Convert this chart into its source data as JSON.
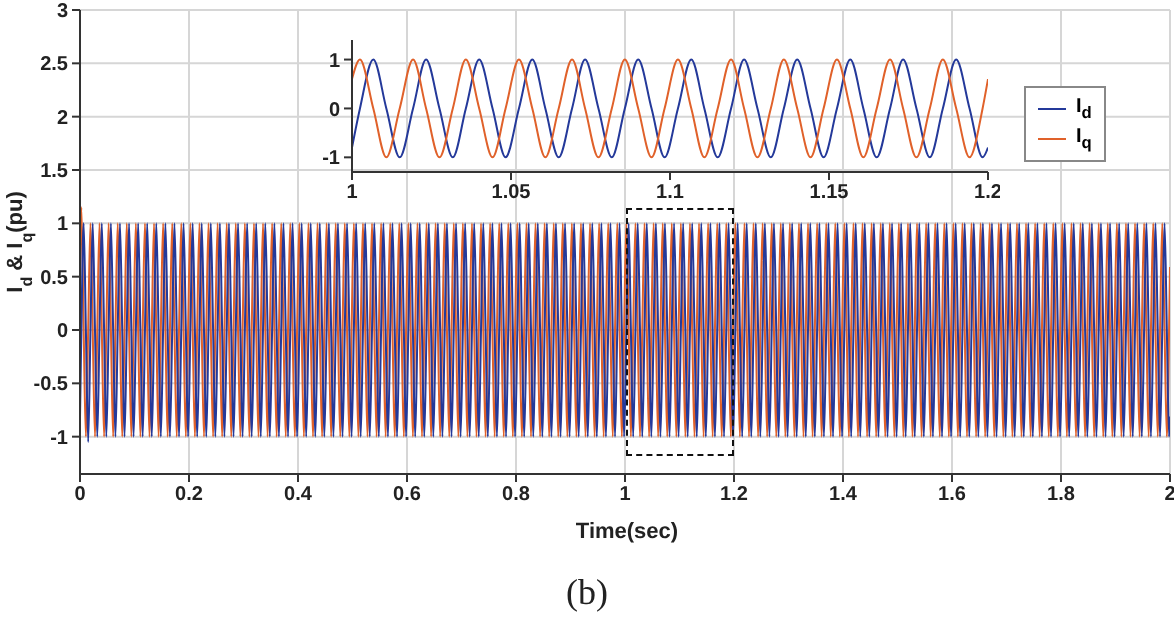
{
  "chart_data": [
    {
      "type": "line",
      "xlabel": "Time(sec)",
      "ylabel": "I$_{d}$ & I$_{q}$(pu)",
      "xlim": [
        0,
        2
      ],
      "ylim": [
        -1.35,
        3
      ],
      "xticks": [
        0,
        0.2,
        0.4,
        0.6,
        0.8,
        1,
        1.2,
        1.4,
        1.6,
        1.8,
        2
      ],
      "yticks": [
        -1,
        -0.5,
        0,
        0.5,
        1,
        1.5,
        2,
        2.5,
        3
      ],
      "grid": true,
      "annotations": [
        "(b)"
      ],
      "x": [
        0,
        0.0025,
        0.0067,
        0.0108,
        0.015,
        0.0192,
        0.0233,
        0.0275,
        0.0317,
        0.0358,
        0.04,
        0.0442,
        0.0483,
        0.0525,
        0.0567,
        0.0608,
        0.065,
        0.0692,
        0.0733,
        0.0775,
        0.0817,
        0.0858,
        0.09,
        0.0942,
        0.0983,
        0.1025,
        0.1067,
        0.1108,
        0.115,
        0.1192,
        0.1233,
        0.1275,
        0.1317,
        0.1358,
        0.14,
        0.1442,
        0.1483,
        0.1525,
        0.1567,
        0.1608,
        0.165,
        0.1692,
        0.1733,
        0.1775,
        0.1817,
        0.1858,
        0.19,
        0.1942,
        0.1983,
        0.2025,
        0.2067,
        0.2108,
        0.215,
        0.2192,
        0.2233,
        0.2275,
        0.2317,
        0.2358,
        0.24,
        0.2442,
        0.2483,
        0.2525,
        0.2567,
        0.2608,
        0.265,
        0.2692,
        0.2733,
        0.2775,
        0.2817,
        0.2858,
        0.29,
        0.2942,
        0.2983,
        0.3025,
        0.3067,
        0.3108,
        0.315,
        0.3192,
        0.3233,
        0.3275,
        0.3317,
        0.3358,
        0.34,
        0.3442,
        0.3483,
        0.3525,
        0.3567,
        0.3608,
        0.365,
        0.3692,
        0.3733,
        0.3775,
        0.3817,
        0.3858,
        0.39,
        0.3942,
        0.3983,
        0.4025,
        0.4067,
        0.4108,
        0.415,
        0.4192,
        0.4233,
        0.4275,
        0.4317,
        0.4358,
        0.44,
        0.4442,
        0.4483,
        0.4525,
        0.4567,
        0.4608,
        0.465,
        0.4692,
        0.4733,
        0.4775,
        0.4817,
        0.4858,
        0.49,
        0.4942,
        0.4983,
        0.5025,
        0.5067,
        0.5108,
        0.515,
        0.5192,
        0.5233,
        0.5275,
        0.5317,
        0.5358,
        0.54,
        0.5442,
        0.5483,
        0.5525,
        0.5567,
        0.5608,
        0.565,
        0.5692,
        0.5733,
        0.5775,
        0.5817,
        0.5858,
        0.59,
        0.5942,
        0.5983,
        0.6025,
        0.6067,
        0.6108,
        0.615,
        0.6192,
        0.6233,
        0.6275,
        0.6317,
        0.6358,
        0.64,
        0.6442,
        0.6483,
        0.6525,
        0.6567,
        0.6608,
        0.665,
        0.6692,
        0.6733,
        0.6775,
        0.6817,
        0.6858,
        0.69,
        0.6942,
        0.6983,
        0.7025,
        0.7067,
        0.7108,
        0.715,
        0.7192,
        0.7233,
        0.7275,
        0.7317,
        0.7358,
        0.74,
        0.7442,
        0.7483,
        0.7525,
        0.7567,
        0.7608,
        0.765,
        0.7692,
        0.7733,
        0.7775,
        0.7817,
        0.7858,
        0.79,
        0.7942,
        0.7983,
        0.8025,
        0.8067,
        0.8108,
        0.815,
        0.8192,
        0.8233,
        0.8275,
        0.8317,
        0.8358,
        0.84,
        0.8442,
        0.8483,
        0.8525,
        0.8567,
        0.8608,
        0.865,
        0.8692,
        0.8733,
        0.8775,
        0.8817,
        0.8858,
        0.89,
        0.8942,
        0.8983,
        0.9025,
        0.9067,
        0.9108,
        0.915,
        0.9192,
        0.9233,
        0.9275,
        0.9317,
        0.9358,
        0.94,
        0.9442,
        0.9483,
        0.9525,
        0.9567,
        0.9608,
        0.965,
        0.9692,
        0.9733,
        0.9775,
        0.9817,
        0.9858,
        0.99,
        0.9942,
        0.9983,
        1.0025,
        1.0067,
        1.0108,
        1.015,
        1.0192,
        1.0233,
        1.0275,
        1.0317,
        1.0358,
        1.04,
        1.0442,
        1.0483,
        1.0525,
        1.0567,
        1.0608,
        1.065,
        1.0692,
        1.0733,
        1.0775,
        1.0817,
        1.0858,
        1.09,
        1.0942,
        1.0983,
        1.1025,
        1.1067,
        1.1108,
        1.115,
        1.1192,
        1.1233,
        1.1275,
        1.1317,
        1.1358,
        1.14,
        1.1442,
        1.1483,
        1.1525,
        1.1567,
        1.1608,
        1.165,
        1.1692,
        1.1733,
        1.1775,
        1.1817,
        1.1858,
        1.19,
        1.1942,
        1.1983,
        1.2025,
        1.2067,
        1.2108,
        1.215,
        1.2192,
        1.2233,
        1.2275,
        1.2317,
        1.2358,
        1.24,
        1.2442,
        1.2483,
        1.2525,
        1.2567,
        1.2608,
        1.265,
        1.2692,
        1.2733,
        1.2775,
        1.2817,
        1.2858,
        1.29,
        1.2942,
        1.2983,
        1.3025,
        1.3067,
        1.3108,
        1.315,
        1.3192,
        1.3233,
        1.3275,
        1.3317,
        1.3358,
        1.34,
        1.3442,
        1.3483,
        1.3525,
        1.3567,
        1.3608,
        1.365,
        1.3692,
        1.3733,
        1.3775,
        1.3817,
        1.3858,
        1.39,
        1.3942,
        1.3983,
        1.4025,
        1.4067,
        1.4108,
        1.415,
        1.4192,
        1.4233,
        1.4275,
        1.4317,
        1.4358,
        1.44,
        1.4442,
        1.4483,
        1.4525,
        1.4567,
        1.4608,
        1.465,
        1.4692,
        1.4733,
        1.4775,
        1.4817,
        1.4858,
        1.49,
        1.4942,
        1.4983,
        1.5025,
        1.5067,
        1.5108,
        1.515,
        1.5192,
        1.5233,
        1.5275,
        1.5317,
        1.5358,
        1.54,
        1.5442,
        1.5483,
        1.5525,
        1.5567,
        1.5608,
        1.565,
        1.5692,
        1.5733,
        1.5775,
        1.5817,
        1.5858,
        1.59,
        1.5942,
        1.5983,
        1.6025,
        1.6067,
        1.6108,
        1.615,
        1.6192,
        1.6233,
        1.6275,
        1.6317,
        1.6358,
        1.64,
        1.6442,
        1.6483,
        1.6525,
        1.6567,
        1.6608,
        1.665,
        1.6692,
        1.6733,
        1.6775,
        1.6817,
        1.6858,
        1.69,
        1.6942,
        1.6983,
        1.7025,
        1.7067,
        1.7108,
        1.715,
        1.7192,
        1.7233,
        1.7275,
        1.7317,
        1.7358,
        1.74,
        1.7442,
        1.7483,
        1.7525,
        1.7567,
        1.7608,
        1.765,
        1.7692,
        1.7733,
        1.7775,
        1.7817,
        1.7858,
        1.79,
        1.7942,
        1.7983,
        1.8025,
        1.8067,
        1.8108,
        1.815,
        1.8192,
        1.8233,
        1.8275,
        1.8317,
        1.8358,
        1.84,
        1.8442,
        1.8483,
        1.8525,
        1.8567,
        1.8608,
        1.865,
        1.8692,
        1.8733,
        1.8775,
        1.8817,
        1.8858,
        1.89,
        1.8942,
        1.8983,
        1.9025,
        1.9067,
        1.9108,
        1.915,
        1.9192,
        1.9233,
        1.9275,
        1.9317,
        1.9358,
        1.94,
        1.9442,
        1.9483,
        1.9525,
        1.9567,
        1.9608,
        1.965,
        1.9692,
        1.9733,
        1.9775,
        1.9817,
        1.9858,
        1.99,
        1.9942,
        1.9983,
        2
      ],
      "series": [
        {
          "color": "#e0612a",
          "values": [
            0.59,
            1.15,
            0,
            -1,
            0,
            1,
            0,
            -1,
            0,
            1,
            0,
            -1,
            0,
            1,
            0,
            -1,
            0,
            1,
            0,
            -1,
            0,
            1,
            0,
            -1,
            0,
            1,
            0,
            -1,
            0,
            1,
            0,
            -1,
            0,
            1,
            0,
            -1,
            0,
            1,
            0,
            -1,
            0,
            1,
            0,
            -1,
            0,
            1,
            0,
            -1,
            0,
            1,
            0,
            -1,
            0,
            1,
            0,
            -1,
            0,
            1,
            0,
            -1,
            0,
            1,
            0,
            -1,
            0,
            1,
            0,
            -1,
            0,
            1,
            0,
            -1,
            0,
            1,
            0,
            -1,
            0,
            1,
            0,
            -1,
            0,
            1,
            0,
            -1,
            0,
            1,
            0,
            -1,
            0,
            1,
            0,
            -1,
            0,
            1,
            0,
            -1,
            0,
            1,
            0,
            -1,
            0,
            1,
            0,
            -1,
            0,
            1,
            0,
            -1,
            0,
            1,
            0,
            -1,
            0,
            1,
            0,
            -1,
            0,
            1,
            0,
            -1,
            0,
            1,
            0,
            -1,
            0,
            1,
            0,
            -1,
            0,
            1,
            0,
            -1,
            0,
            1,
            0,
            -1,
            0,
            1,
            0,
            -1,
            0,
            1,
            0,
            -1,
            0,
            1,
            0,
            -1,
            0,
            1,
            0,
            -1,
            0,
            1,
            0,
            -1,
            0,
            1,
            0,
            -1,
            0,
            1,
            0,
            -1,
            0,
            1,
            0,
            -1,
            0,
            1,
            0,
            -1,
            0,
            1,
            0,
            -1,
            0,
            1,
            0,
            -1,
            0,
            1,
            0,
            -1,
            0,
            1,
            0,
            -1,
            0,
            1,
            0,
            -1,
            0,
            1,
            0,
            -1,
            0,
            1,
            0,
            -1,
            0,
            1,
            0,
            -1,
            0,
            1,
            0,
            -1,
            0,
            1,
            0,
            -1,
            0,
            1,
            0,
            -1,
            0,
            1,
            0,
            -1,
            0,
            1,
            0,
            -1,
            0,
            1,
            0,
            -1,
            0,
            1,
            0,
            -1,
            0,
            1,
            0,
            -1,
            0,
            1,
            0,
            -1,
            0,
            1,
            0,
            -1,
            0,
            1,
            0,
            -1,
            0,
            1,
            0,
            -1,
            0,
            1,
            0,
            -1,
            0,
            1,
            0,
            -1,
            0,
            1,
            0,
            -1,
            0,
            1,
            0,
            -1,
            0,
            1,
            0,
            -1,
            0,
            1,
            0,
            -1,
            0,
            1,
            0,
            -1,
            0,
            1,
            0,
            -1,
            0,
            1,
            0,
            -1,
            0,
            1,
            0,
            -1,
            0,
            1,
            0,
            -1,
            0,
            1,
            0,
            -1,
            0,
            1,
            0,
            -1,
            0,
            1,
            0,
            -1,
            0,
            1,
            0,
            -1,
            0,
            1,
            0,
            -1,
            0,
            1,
            0,
            -1,
            0,
            1,
            0,
            -1,
            0,
            1,
            0,
            -1,
            0,
            1,
            0,
            -1,
            0,
            1,
            0,
            -1,
            0,
            1,
            0,
            -1,
            0,
            1,
            0,
            -1,
            0,
            1,
            0,
            -1,
            0,
            1,
            0,
            -1,
            0,
            1,
            0,
            -1,
            0,
            1,
            0,
            -1,
            0,
            1,
            0,
            -1,
            0,
            1,
            0,
            -1,
            0,
            1,
            0,
            -1,
            0,
            1,
            0,
            -1,
            0,
            1,
            0,
            -1,
            0,
            1,
            0,
            -1,
            0,
            1,
            0,
            -1,
            0,
            1,
            0,
            -1,
            0,
            1,
            0,
            -1,
            0,
            1,
            0,
            -1,
            0,
            1,
            0,
            -1,
            0,
            1,
            0,
            -1,
            0,
            1,
            0,
            -1,
            0,
            1,
            0,
            -1,
            0,
            1,
            0,
            -1,
            0,
            1,
            0,
            -1,
            0,
            1,
            0,
            -1,
            0,
            1,
            0,
            -1,
            0,
            1,
            0,
            -1,
            0,
            1,
            0,
            -1,
            0,
            1,
            0,
            -1,
            0,
            1,
            0,
            -1,
            0,
            1,
            0,
            -1,
            0,
            1,
            0,
            -1,
            0,
            1,
            0,
            -1,
            0,
            1,
            0,
            -1,
            0,
            1,
            0,
            -1,
            0,
            1,
            0,
            -1,
            0,
            1,
            0,
            -1,
            0,
            1,
            0,
            -1,
            0,
            0.59
          ]
        },
        {
          "color": "#24399a",
          "values": [
            -0.81,
            0,
            1,
            0,
            -1.05,
            0,
            1,
            0,
            -1,
            0,
            1,
            0,
            -1,
            0,
            1,
            0,
            -1,
            0,
            1,
            0,
            -1,
            0,
            1,
            0,
            -1,
            0,
            1,
            0,
            -1,
            0,
            1,
            0,
            -1,
            0,
            1,
            0,
            -1,
            0,
            1,
            0,
            -1,
            0,
            1,
            0,
            -1,
            0,
            1,
            0,
            -1,
            0,
            1,
            0,
            -1,
            0,
            1,
            0,
            -1,
            0,
            1,
            0,
            -1,
            0,
            1,
            0,
            -1,
            0,
            1,
            0,
            -1,
            0,
            1,
            0,
            -1,
            0,
            1,
            0,
            -1,
            0,
            1,
            0,
            -1,
            0,
            1,
            0,
            -1,
            0,
            1,
            0,
            -1,
            0,
            1,
            0,
            -1,
            0,
            1,
            0,
            -1,
            0,
            1,
            0,
            -1,
            0,
            1,
            0,
            -1,
            0,
            1,
            0,
            -1,
            0,
            1,
            0,
            -1,
            0,
            1,
            0,
            -1,
            0,
            1,
            0,
            -1,
            0,
            1,
            0,
            -1,
            0,
            1,
            0,
            -1,
            0,
            1,
            0,
            -1,
            0,
            1,
            0,
            -1,
            0,
            1,
            0,
            -1,
            0,
            1,
            0,
            -1,
            0,
            1,
            0,
            -1,
            0,
            1,
            0,
            -1,
            0,
            1,
            0,
            -1,
            0,
            1,
            0,
            -1,
            0,
            1,
            0,
            -1,
            0,
            1,
            0,
            -1,
            0,
            1,
            0,
            -1,
            0,
            1,
            0,
            -1,
            0,
            1,
            0,
            -1,
            0,
            1,
            0,
            -1,
            0,
            1,
            0,
            -1,
            0,
            1,
            0,
            -1,
            0,
            1,
            0,
            -1,
            0,
            1,
            0,
            -1,
            0,
            1,
            0,
            -1,
            0,
            1,
            0,
            -1,
            0,
            1,
            0,
            -1,
            0,
            1,
            0,
            -1,
            0,
            1,
            0,
            -1,
            0,
            1,
            0,
            -1,
            0,
            1,
            0,
            -1,
            0,
            1,
            0,
            -1,
            0,
            1,
            0,
            -1,
            0,
            1,
            0,
            -1,
            0,
            1,
            0,
            -1,
            0,
            1,
            0,
            -1,
            0,
            1,
            0,
            -1,
            0,
            1,
            0,
            -1,
            0,
            1,
            0,
            -1,
            0,
            1,
            0,
            -1,
            0,
            1,
            0,
            -1,
            0,
            1,
            0,
            -1,
            0,
            1,
            0,
            -1,
            0,
            1,
            0,
            -1,
            0,
            1,
            0,
            -1,
            0,
            1,
            0,
            -1,
            0,
            1,
            0,
            -1,
            0,
            1,
            0,
            -1,
            0,
            1,
            0,
            -1,
            0,
            1,
            0,
            -1,
            0,
            1,
            0,
            -1,
            0,
            1,
            0,
            -1,
            0,
            1,
            0,
            -1,
            0,
            1,
            0,
            -1,
            0,
            1,
            0,
            -1,
            0,
            1,
            0,
            -1,
            0,
            1,
            0,
            -1,
            0,
            1,
            0,
            -1,
            0,
            1,
            0,
            -1,
            0,
            1,
            0,
            -1,
            0,
            1,
            0,
            -1,
            0,
            1,
            0,
            -1,
            0,
            1,
            0,
            -1,
            0,
            1,
            0,
            -1,
            0,
            1,
            0,
            -1,
            0,
            1,
            0,
            -1,
            0,
            1,
            0,
            -1,
            0,
            1,
            0,
            -1,
            0,
            1,
            0,
            -1,
            0,
            1,
            0,
            -1,
            0,
            1,
            0,
            -1,
            0,
            1,
            0,
            -1,
            0,
            1,
            0,
            -1,
            0,
            1,
            0,
            -1,
            0,
            1,
            0,
            -1,
            0,
            1,
            0,
            -1,
            0,
            1,
            0,
            -1,
            0,
            1,
            0,
            -1,
            0,
            1,
            0,
            -1,
            0,
            1,
            0,
            -1,
            0,
            1,
            0,
            -1,
            0,
            1,
            0,
            -1,
            0,
            1,
            0,
            -1,
            0,
            1,
            0,
            -1,
            0,
            1,
            0,
            -1,
            0,
            1,
            0,
            -1,
            0,
            1,
            0,
            -1,
            0,
            1,
            0,
            -1,
            0,
            1,
            0,
            -1,
            0,
            1,
            0,
            -1,
            0,
            1,
            0,
            -1,
            0,
            1,
            0,
            -1,
            0,
            1,
            0,
            -1,
            0,
            1,
            0,
            -1,
            -0.81
          ]
        }
      ]
    },
    {
      "type": "line",
      "xlim": [
        1,
        1.2
      ],
      "ylim": [
        -1.3,
        1.4
      ],
      "xticks": [
        1,
        1.05,
        1.1,
        1.15,
        1.2
      ],
      "yticks": [
        -1,
        0,
        1
      ],
      "legend": "right",
      "x": [
        1,
        1.0025,
        1.0067,
        1.0108,
        1.015,
        1.0192,
        1.0233,
        1.0275,
        1.0317,
        1.0358,
        1.04,
        1.0442,
        1.0483,
        1.0525,
        1.0567,
        1.0608,
        1.065,
        1.0692,
        1.0733,
        1.0775,
        1.0817,
        1.0858,
        1.09,
        1.0942,
        1.0983,
        1.1025,
        1.1067,
        1.1108,
        1.115,
        1.1192,
        1.1233,
        1.1275,
        1.1317,
        1.1358,
        1.14,
        1.1442,
        1.1483,
        1.1525,
        1.1567,
        1.1608,
        1.165,
        1.1692,
        1.1733,
        1.1775,
        1.1817,
        1.1858,
        1.19,
        1.1942,
        1.1983,
        1.2
      ],
      "series": [
        {
          "name": "I$_{d}$",
          "color": "#24399a",
          "values": [
            -0.8,
            0,
            1,
            0,
            -1,
            0,
            1,
            0,
            -1,
            0,
            1,
            0,
            -1,
            0,
            1,
            0,
            -1,
            0,
            1,
            0,
            -1,
            0,
            1,
            0,
            -1,
            0,
            1,
            0,
            -1,
            0,
            1,
            0,
            -1,
            0,
            1,
            0,
            -1,
            0,
            1,
            0,
            -1,
            0,
            1,
            0,
            -1,
            0,
            1,
            0,
            -1,
            -0.8
          ]
        },
        {
          "name": "I$_{q}$",
          "color": "#e0612a",
          "values": [
            0.6,
            1,
            0,
            -1,
            0,
            1,
            0,
            -1,
            0,
            1,
            0,
            -1,
            0,
            1,
            0,
            -1,
            0,
            1,
            0,
            -1,
            0,
            1,
            0,
            -1,
            0,
            1,
            0,
            -1,
            0,
            1,
            0,
            -1,
            0,
            1,
            0,
            -1,
            0,
            1,
            0,
            -1,
            0,
            1,
            0,
            -1,
            0,
            1,
            0,
            -1,
            0,
            0.6
          ]
        }
      ]
    }
  ]
}
